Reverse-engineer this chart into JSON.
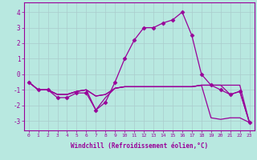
{
  "xlabel": "Windchill (Refroidissement éolien,°C)",
  "ylabel": "",
  "bg_color": "#b8e8e0",
  "grid_color": "#99cccc",
  "line_color": "#990099",
  "xlim": [
    -0.5,
    23.5
  ],
  "ylim": [
    -3.6,
    4.6
  ],
  "xticks": [
    0,
    1,
    2,
    3,
    4,
    5,
    6,
    7,
    8,
    9,
    10,
    11,
    12,
    13,
    14,
    15,
    16,
    17,
    18,
    19,
    20,
    21,
    22,
    23
  ],
  "yticks": [
    -3,
    -2,
    -1,
    0,
    1,
    2,
    3,
    4
  ],
  "line1_x": [
    0,
    1,
    2,
    3,
    4,
    5,
    6,
    7,
    8,
    9,
    10,
    11,
    12,
    13,
    14,
    15,
    16,
    17,
    18,
    19,
    20,
    21,
    22,
    23
  ],
  "line1_y": [
    -0.5,
    -1.0,
    -1.0,
    -1.5,
    -1.5,
    -1.2,
    -1.2,
    -2.3,
    -1.8,
    -0.5,
    1.0,
    2.2,
    3.0,
    3.0,
    3.3,
    3.5,
    4.0,
    2.5,
    0.0,
    -0.7,
    -1.0,
    -1.3,
    -1.1,
    -3.1
  ],
  "line2_x": [
    0,
    1,
    2,
    3,
    4,
    5,
    6,
    7,
    8,
    9,
    10,
    11,
    12,
    13,
    14,
    15,
    16,
    17,
    18,
    19,
    20,
    21,
    22,
    23
  ],
  "line2_y": [
    -0.5,
    -1.0,
    -1.0,
    -1.3,
    -1.3,
    -1.1,
    -1.0,
    -1.4,
    -1.3,
    -0.9,
    -0.8,
    -0.8,
    -0.8,
    -0.8,
    -0.8,
    -0.8,
    -0.8,
    -0.8,
    -0.7,
    -0.7,
    -0.7,
    -0.7,
    -0.7,
    -3.1
  ],
  "line3_x": [
    0,
    1,
    2,
    3,
    4,
    5,
    6,
    7,
    8,
    9,
    10,
    11,
    12,
    13,
    14,
    15,
    16,
    17,
    18,
    19,
    20,
    21,
    22,
    23
  ],
  "line3_y": [
    -0.5,
    -1.0,
    -1.0,
    -1.3,
    -1.3,
    -1.1,
    -1.0,
    -1.4,
    -1.3,
    -0.9,
    -0.8,
    -0.8,
    -0.8,
    -0.8,
    -0.8,
    -0.8,
    -0.8,
    -0.8,
    -0.7,
    -2.8,
    -2.9,
    -2.8,
    -2.8,
    -3.1
  ],
  "line4_x": [
    0,
    1,
    2,
    3,
    4,
    5,
    6,
    7,
    8,
    9,
    10,
    11,
    12,
    13,
    14,
    15,
    16,
    17,
    18,
    19,
    20,
    21,
    22,
    23
  ],
  "line4_y": [
    -0.5,
    -1.0,
    -1.0,
    -1.3,
    -1.3,
    -1.1,
    -1.0,
    -2.3,
    -1.5,
    -0.9,
    -0.8,
    -0.8,
    -0.8,
    -0.8,
    -0.8,
    -0.8,
    -0.8,
    -0.8,
    -0.7,
    -0.7,
    -0.7,
    -1.3,
    -1.1,
    -3.1
  ],
  "marker": "D",
  "markersize": 2.5,
  "linewidth": 0.9
}
